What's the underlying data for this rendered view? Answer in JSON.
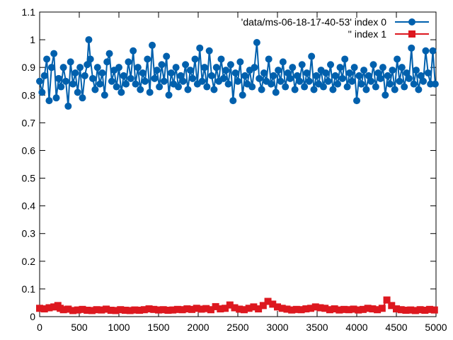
{
  "chart_data": {
    "type": "line",
    "title": "",
    "xlabel": "",
    "ylabel": "",
    "xlim": [
      0,
      5000
    ],
    "ylim": [
      0,
      1.1
    ],
    "x_ticks": [
      0,
      500,
      1000,
      1500,
      2000,
      2500,
      3000,
      3500,
      4000,
      4500,
      5000
    ],
    "y_ticks": [
      0,
      0.1,
      0.2,
      0.3,
      0.4,
      0.5,
      0.6,
      0.7,
      0.8,
      0.9,
      1,
      1.1
    ],
    "x_tick_labels": [
      "0",
      "500",
      "1000",
      "1500",
      "2000",
      "2500",
      "3000",
      "3500",
      "4000",
      "4500",
      "5000"
    ],
    "y_tick_labels": [
      "0",
      "0.1",
      "0.2",
      "0.3",
      "0.4",
      "0.5",
      "0.6",
      "0.7",
      "0.8",
      "0.9",
      "1",
      "1.1"
    ],
    "grid": false,
    "legend_position": "top-right",
    "series": [
      {
        "name": "'data/ms-06-18-17-40-53' index 0",
        "color": "#0060ad",
        "marker": "circle",
        "points": [
          [
            0,
            0.85
          ],
          [
            30,
            0.81
          ],
          [
            60,
            0.87
          ],
          [
            90,
            0.93
          ],
          [
            120,
            0.78
          ],
          [
            150,
            0.9
          ],
          [
            180,
            0.95
          ],
          [
            210,
            0.79
          ],
          [
            240,
            0.86
          ],
          [
            270,
            0.83
          ],
          [
            300,
            0.9
          ],
          [
            330,
            0.85
          ],
          [
            360,
            0.76
          ],
          [
            390,
            0.92
          ],
          [
            420,
            0.84
          ],
          [
            450,
            0.88
          ],
          [
            480,
            0.81
          ],
          [
            510,
            0.9
          ],
          [
            540,
            0.79
          ],
          [
            570,
            0.87
          ],
          [
            600,
            0.91
          ],
          [
            620,
            1.0
          ],
          [
            640,
            0.93
          ],
          [
            670,
            0.86
          ],
          [
            700,
            0.82
          ],
          [
            730,
            0.9
          ],
          [
            760,
            0.84
          ],
          [
            790,
            0.88
          ],
          [
            820,
            0.8
          ],
          [
            850,
            0.92
          ],
          [
            880,
            0.95
          ],
          [
            910,
            0.85
          ],
          [
            940,
            0.89
          ],
          [
            970,
            0.83
          ],
          [
            1000,
            0.9
          ],
          [
            1030,
            0.81
          ],
          [
            1060,
            0.87
          ],
          [
            1090,
            0.84
          ],
          [
            1120,
            0.92
          ],
          [
            1150,
            0.86
          ],
          [
            1180,
            0.96
          ],
          [
            1210,
            0.84
          ],
          [
            1240,
            0.9
          ],
          [
            1270,
            0.82
          ],
          [
            1300,
            0.88
          ],
          [
            1330,
            0.85
          ],
          [
            1360,
            0.93
          ],
          [
            1390,
            0.81
          ],
          [
            1420,
            0.98
          ],
          [
            1450,
            0.86
          ],
          [
            1480,
            0.89
          ],
          [
            1510,
            0.83
          ],
          [
            1540,
            0.91
          ],
          [
            1570,
            0.85
          ],
          [
            1600,
            0.94
          ],
          [
            1630,
            0.8
          ],
          [
            1660,
            0.88
          ],
          [
            1690,
            0.84
          ],
          [
            1720,
            0.9
          ],
          [
            1750,
            0.83
          ],
          [
            1780,
            0.87
          ],
          [
            1810,
            0.85
          ],
          [
            1840,
            0.91
          ],
          [
            1870,
            0.82
          ],
          [
            1900,
            0.89
          ],
          [
            1930,
            0.86
          ],
          [
            1960,
            0.93
          ],
          [
            1990,
            0.84
          ],
          [
            2020,
            0.97
          ],
          [
            2050,
            0.85
          ],
          [
            2080,
            0.9
          ],
          [
            2110,
            0.83
          ],
          [
            2140,
            0.96
          ],
          [
            2170,
            0.87
          ],
          [
            2200,
            0.82
          ],
          [
            2230,
            0.9
          ],
          [
            2260,
            0.85
          ],
          [
            2290,
            0.93
          ],
          [
            2320,
            0.86
          ],
          [
            2350,
            0.89
          ],
          [
            2380,
            0.84
          ],
          [
            2410,
            0.91
          ],
          [
            2440,
            0.78
          ],
          [
            2470,
            0.88
          ],
          [
            2500,
            0.85
          ],
          [
            2530,
            0.92
          ],
          [
            2560,
            0.8
          ],
          [
            2590,
            0.87
          ],
          [
            2620,
            0.84
          ],
          [
            2650,
            0.89
          ],
          [
            2680,
            0.83
          ],
          [
            2710,
            0.9
          ],
          [
            2740,
            0.99
          ],
          [
            2770,
            0.86
          ],
          [
            2800,
            0.82
          ],
          [
            2830,
            0.88
          ],
          [
            2860,
            0.85
          ],
          [
            2890,
            0.93
          ],
          [
            2920,
            0.84
          ],
          [
            2950,
            0.87
          ],
          [
            2980,
            0.81
          ],
          [
            3010,
            0.89
          ],
          [
            3040,
            0.85
          ],
          [
            3070,
            0.92
          ],
          [
            3100,
            0.83
          ],
          [
            3130,
            0.88
          ],
          [
            3160,
            0.86
          ],
          [
            3190,
            0.9
          ],
          [
            3220,
            0.82
          ],
          [
            3250,
            0.87
          ],
          [
            3280,
            0.85
          ],
          [
            3310,
            0.91
          ],
          [
            3340,
            0.83
          ],
          [
            3370,
            0.88
          ],
          [
            3400,
            0.85
          ],
          [
            3430,
            0.94
          ],
          [
            3460,
            0.82
          ],
          [
            3490,
            0.87
          ],
          [
            3520,
            0.84
          ],
          [
            3550,
            0.89
          ],
          [
            3580,
            0.83
          ],
          [
            3610,
            0.88
          ],
          [
            3640,
            0.85
          ],
          [
            3670,
            0.91
          ],
          [
            3700,
            0.82
          ],
          [
            3730,
            0.87
          ],
          [
            3760,
            0.84
          ],
          [
            3790,
            0.9
          ],
          [
            3820,
            0.86
          ],
          [
            3850,
            0.93
          ],
          [
            3880,
            0.83
          ],
          [
            3910,
            0.88
          ],
          [
            3940,
            0.85
          ],
          [
            3970,
            0.9
          ],
          [
            4000,
            0.78
          ],
          [
            4030,
            0.87
          ],
          [
            4060,
            0.84
          ],
          [
            4090,
            0.89
          ],
          [
            4120,
            0.82
          ],
          [
            4150,
            0.87
          ],
          [
            4180,
            0.85
          ],
          [
            4210,
            0.91
          ],
          [
            4240,
            0.83
          ],
          [
            4270,
            0.88
          ],
          [
            4300,
            0.86
          ],
          [
            4330,
            0.9
          ],
          [
            4360,
            0.8
          ],
          [
            4390,
            0.87
          ],
          [
            4420,
            0.84
          ],
          [
            4450,
            0.89
          ],
          [
            4480,
            0.82
          ],
          [
            4510,
            0.93
          ],
          [
            4540,
            0.85
          ],
          [
            4570,
            0.9
          ],
          [
            4600,
            0.83
          ],
          [
            4630,
            0.88
          ],
          [
            4660,
            0.86
          ],
          [
            4690,
            0.97
          ],
          [
            4720,
            0.84
          ],
          [
            4750,
            0.89
          ],
          [
            4780,
            0.82
          ],
          [
            4810,
            0.87
          ],
          [
            4840,
            0.85
          ],
          [
            4870,
            0.96
          ],
          [
            4900,
            0.88
          ],
          [
            4930,
            0.84
          ],
          [
            4960,
            0.96
          ],
          [
            4990,
            0.84
          ]
        ]
      },
      {
        "name": "'' index 1",
        "color": "#dd181f",
        "marker": "square",
        "points": [
          [
            0,
            0.03
          ],
          [
            60,
            0.028
          ],
          [
            120,
            0.032
          ],
          [
            180,
            0.035
          ],
          [
            230,
            0.04
          ],
          [
            260,
            0.03
          ],
          [
            300,
            0.025
          ],
          [
            360,
            0.027
          ],
          [
            420,
            0.022
          ],
          [
            480,
            0.024
          ],
          [
            540,
            0.026
          ],
          [
            600,
            0.023
          ],
          [
            660,
            0.022
          ],
          [
            720,
            0.025
          ],
          [
            780,
            0.024
          ],
          [
            840,
            0.027
          ],
          [
            900,
            0.023
          ],
          [
            960,
            0.022
          ],
          [
            1020,
            0.025
          ],
          [
            1080,
            0.023
          ],
          [
            1140,
            0.022
          ],
          [
            1200,
            0.024
          ],
          [
            1260,
            0.023
          ],
          [
            1320,
            0.025
          ],
          [
            1380,
            0.028
          ],
          [
            1440,
            0.026
          ],
          [
            1500,
            0.024
          ],
          [
            1560,
            0.025
          ],
          [
            1620,
            0.023
          ],
          [
            1680,
            0.024
          ],
          [
            1740,
            0.026
          ],
          [
            1800,
            0.025
          ],
          [
            1860,
            0.028
          ],
          [
            1920,
            0.026
          ],
          [
            1980,
            0.03
          ],
          [
            2040,
            0.027
          ],
          [
            2100,
            0.029
          ],
          [
            2160,
            0.025
          ],
          [
            2220,
            0.036
          ],
          [
            2280,
            0.028
          ],
          [
            2340,
            0.03
          ],
          [
            2400,
            0.042
          ],
          [
            2460,
            0.032
          ],
          [
            2520,
            0.027
          ],
          [
            2580,
            0.025
          ],
          [
            2640,
            0.03
          ],
          [
            2700,
            0.035
          ],
          [
            2760,
            0.028
          ],
          [
            2820,
            0.04
          ],
          [
            2880,
            0.055
          ],
          [
            2940,
            0.045
          ],
          [
            3000,
            0.035
          ],
          [
            3060,
            0.03
          ],
          [
            3120,
            0.027
          ],
          [
            3180,
            0.024
          ],
          [
            3240,
            0.026
          ],
          [
            3300,
            0.025
          ],
          [
            3360,
            0.028
          ],
          [
            3420,
            0.03
          ],
          [
            3480,
            0.035
          ],
          [
            3540,
            0.032
          ],
          [
            3600,
            0.03
          ],
          [
            3660,
            0.025
          ],
          [
            3720,
            0.028
          ],
          [
            3780,
            0.024
          ],
          [
            3840,
            0.026
          ],
          [
            3900,
            0.025
          ],
          [
            3960,
            0.027
          ],
          [
            4020,
            0.024
          ],
          [
            4080,
            0.026
          ],
          [
            4140,
            0.03
          ],
          [
            4200,
            0.028
          ],
          [
            4260,
            0.025
          ],
          [
            4320,
            0.03
          ],
          [
            4380,
            0.06
          ],
          [
            4440,
            0.04
          ],
          [
            4500,
            0.028
          ],
          [
            4560,
            0.025
          ],
          [
            4620,
            0.023
          ],
          [
            4680,
            0.024
          ],
          [
            4740,
            0.022
          ],
          [
            4800,
            0.025
          ],
          [
            4860,
            0.023
          ],
          [
            4920,
            0.026
          ],
          [
            4980,
            0.024
          ]
        ]
      }
    ]
  }
}
